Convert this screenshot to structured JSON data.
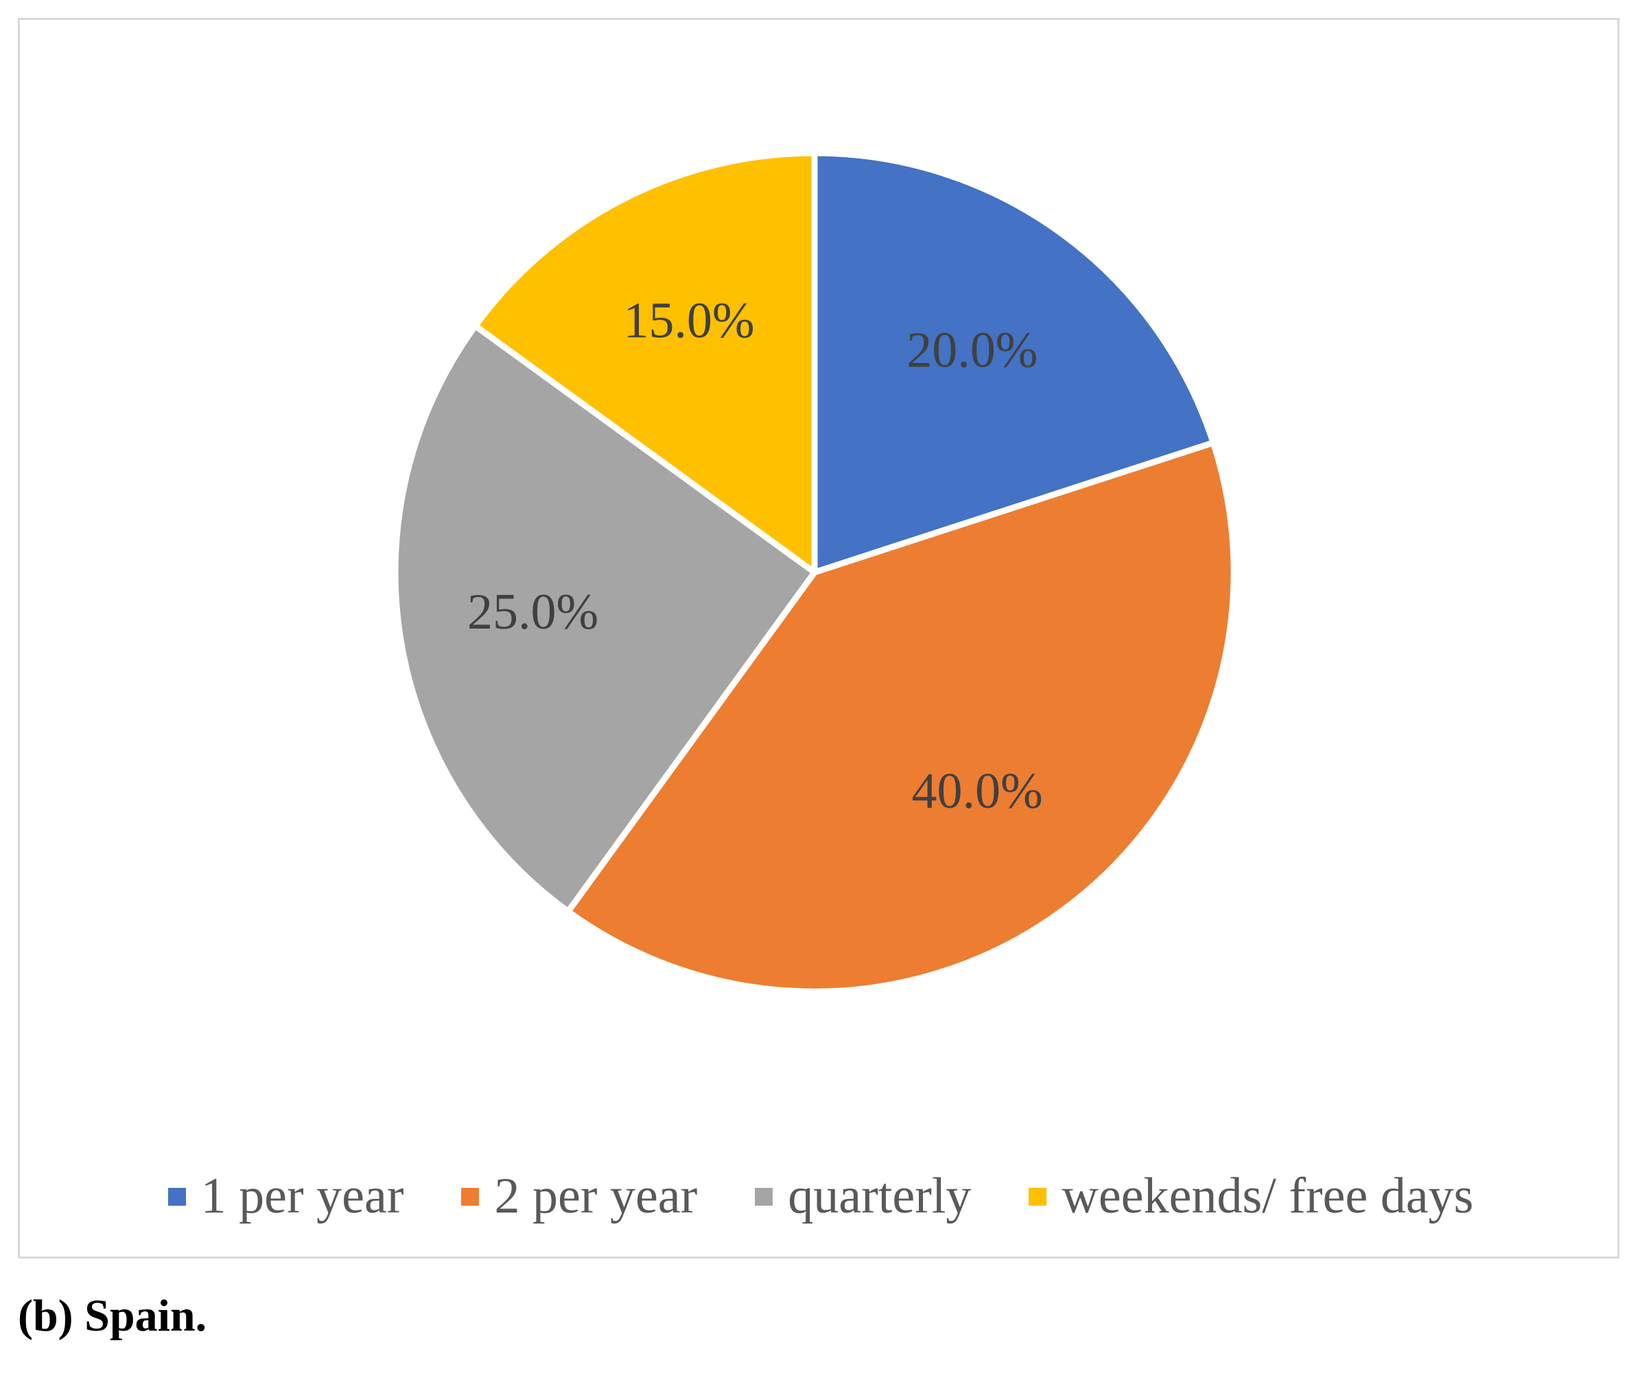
{
  "chart_data": {
    "type": "pie",
    "categories": [
      "1 per year",
      "2 per year",
      "quarterly",
      "weekends/ free days"
    ],
    "values": [
      20.0,
      40.0,
      25.0,
      15.0
    ],
    "data_labels": [
      "20.0%",
      "40.0%",
      "25.0%",
      "15.0%"
    ],
    "colors": [
      "#4472C4",
      "#ED7D31",
      "#A5A5A5",
      "#FFC000"
    ],
    "start_angle": "12 o'clock",
    "direction": "clockwise",
    "legend": "bottom"
  },
  "caption": "(b) Spain."
}
